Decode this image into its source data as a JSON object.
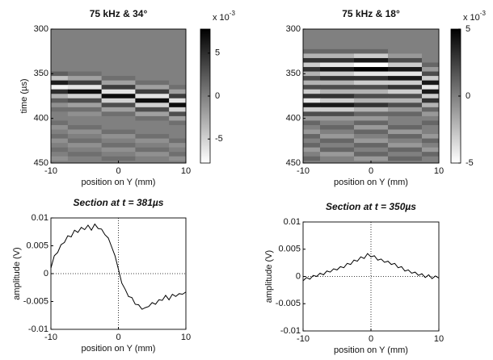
{
  "chart_data": [
    {
      "type": "heatmap",
      "title": "75 kHz & 34°",
      "xlabel": "position on Y (mm)",
      "ylabel": "time (µs)",
      "xlim": [
        -10,
        10
      ],
      "xticks": [
        -10,
        0,
        10
      ],
      "ylim": [
        300,
        450
      ],
      "yticks": [
        300,
        350,
        400,
        450
      ],
      "y_reversed": true,
      "clim": [
        -7.8,
        7.8
      ],
      "cticks": [
        -5,
        0,
        5
      ],
      "colorbar_multiplier": "x 10",
      "colorbar_exponent": "-3",
      "colormap": "gray",
      "x": [
        -10,
        -5,
        0,
        5,
        10
      ],
      "y": [
        300,
        305,
        310,
        315,
        320,
        325,
        330,
        335,
        340,
        345,
        350,
        355,
        360,
        365,
        370,
        375,
        380,
        385,
        390,
        395,
        400,
        405,
        410,
        415,
        420,
        425,
        430,
        435,
        440,
        445,
        450
      ],
      "z": [
        [
          0,
          0,
          0,
          0,
          0
        ],
        [
          0,
          0,
          0,
          0,
          0
        ],
        [
          0,
          0,
          0,
          0,
          0
        ],
        [
          0,
          0,
          0,
          0,
          0
        ],
        [
          0,
          0,
          0,
          0,
          0
        ],
        [
          0,
          0,
          0,
          0,
          0
        ],
        [
          0,
          0,
          0,
          0,
          0
        ],
        [
          0,
          0,
          0,
          0,
          0
        ],
        [
          0,
          0,
          0,
          0,
          0
        ],
        [
          0,
          0,
          0,
          0,
          0
        ],
        [
          2,
          1,
          0,
          0,
          0
        ],
        [
          -4,
          -2,
          1,
          0,
          0
        ],
        [
          6,
          4,
          -2,
          1,
          0
        ],
        [
          -7,
          -6,
          4,
          -2,
          1
        ],
        [
          5,
          7,
          -6,
          4,
          -2
        ],
        [
          -3,
          -5,
          7,
          -6,
          4
        ],
        [
          2,
          3,
          -5,
          7,
          -6
        ],
        [
          -1,
          -2,
          3,
          -5,
          7
        ],
        [
          1,
          1,
          -2,
          3,
          -5
        ],
        [
          0,
          -1,
          1,
          -2,
          3
        ],
        [
          0,
          0,
          0,
          1,
          -2
        ],
        [
          1,
          0,
          0,
          0,
          1
        ],
        [
          -1,
          1,
          0,
          0,
          0
        ],
        [
          0,
          -1,
          1,
          0,
          0
        ],
        [
          1,
          0,
          -1,
          1,
          0
        ],
        [
          -1,
          1,
          0,
          -1,
          1
        ],
        [
          0,
          -1,
          1,
          0,
          -1
        ],
        [
          1,
          0,
          -1,
          1,
          0
        ],
        [
          0,
          1,
          0,
          -1,
          1
        ],
        [
          -1,
          0,
          1,
          0,
          -1
        ],
        [
          0,
          0,
          0,
          0,
          0
        ]
      ]
    },
    {
      "type": "heatmap",
      "title": "75 kHz & 18°",
      "xlabel": "position on Y (mm)",
      "xlim": [
        -10,
        10
      ],
      "xticks": [
        -10,
        0,
        10
      ],
      "ylim": [
        300,
        450
      ],
      "yticks": [
        300,
        350,
        400,
        450
      ],
      "y_reversed": true,
      "clim": [
        -5,
        5
      ],
      "cticks": [
        -5,
        0,
        5
      ],
      "colorbar_multiplier": "x 10",
      "colorbar_exponent": "-3",
      "colormap": "gray",
      "x": [
        -10,
        -5,
        0,
        5,
        10
      ],
      "y": [
        300,
        305,
        310,
        315,
        320,
        325,
        330,
        335,
        340,
        345,
        350,
        355,
        360,
        365,
        370,
        375,
        380,
        385,
        390,
        395,
        400,
        405,
        410,
        415,
        420,
        425,
        430,
        435,
        440,
        445,
        450
      ],
      "z": [
        [
          0,
          0,
          0,
          0,
          0
        ],
        [
          0,
          0,
          0,
          0,
          0
        ],
        [
          0,
          0,
          0,
          0,
          0
        ],
        [
          0,
          0,
          0,
          0,
          0
        ],
        [
          0,
          0,
          0,
          0,
          0
        ],
        [
          1,
          1,
          1,
          0,
          0
        ],
        [
          -2,
          -2,
          -3,
          -1,
          0
        ],
        [
          3,
          3,
          4,
          2,
          0
        ],
        [
          -3,
          -4,
          -5,
          -3,
          1
        ],
        [
          3,
          4,
          5,
          4,
          -1
        ],
        [
          -2,
          -3,
          -4,
          -4,
          2
        ],
        [
          2,
          3,
          3,
          4,
          -3
        ],
        [
          -2,
          -2,
          -3,
          -3,
          4
        ],
        [
          2,
          2,
          2,
          3,
          -4
        ],
        [
          -3,
          -2,
          -2,
          -3,
          4
        ],
        [
          3,
          3,
          2,
          2,
          -3
        ],
        [
          -4,
          -3,
          -2,
          -2,
          3
        ],
        [
          4,
          4,
          3,
          2,
          -2
        ],
        [
          -3,
          -3,
          -2,
          -1,
          1
        ],
        [
          2,
          2,
          1,
          1,
          -1
        ],
        [
          -1,
          -1,
          -1,
          0,
          0
        ],
        [
          1,
          0,
          1,
          0,
          1
        ],
        [
          0,
          1,
          -1,
          1,
          0
        ],
        [
          -1,
          0,
          1,
          -1,
          0
        ],
        [
          1,
          -1,
          0,
          1,
          -1
        ],
        [
          0,
          1,
          -1,
          0,
          1
        ],
        [
          1,
          0,
          1,
          -1,
          0
        ],
        [
          -1,
          1,
          0,
          1,
          -1
        ],
        [
          0,
          -1,
          1,
          0,
          1
        ],
        [
          1,
          0,
          -1,
          1,
          0
        ],
        [
          0,
          0,
          0,
          0,
          0
        ]
      ]
    },
    {
      "type": "line",
      "title": "Section at t = 381µs",
      "xlabel": "position on Y (mm)",
      "ylabel": "amplitude (V)",
      "xlim": [
        -10,
        10
      ],
      "xticks": [
        -10,
        0,
        10
      ],
      "ylim": [
        -0.01,
        0.01
      ],
      "yticks": [
        0.01,
        0.005,
        0,
        -0.005,
        -0.01
      ],
      "color": "#000000",
      "x": [
        -10,
        -9.5,
        -9,
        -8.5,
        -8,
        -7.5,
        -7,
        -6.5,
        -6,
        -5.5,
        -5,
        -4.5,
        -4,
        -3.5,
        -3,
        -2.5,
        -2,
        -1.5,
        -1,
        -0.5,
        0,
        0.5,
        1,
        1.5,
        2,
        2.5,
        3,
        3.5,
        4,
        4.5,
        5,
        5.5,
        6,
        6.5,
        7,
        7.5,
        8,
        8.5,
        9,
        9.5,
        10
      ],
      "values": [
        0.001,
        0.0032,
        0.0038,
        0.0052,
        0.0056,
        0.0068,
        0.0066,
        0.0078,
        0.0074,
        0.0083,
        0.0079,
        0.0087,
        0.0078,
        0.0089,
        0.0081,
        0.008,
        0.007,
        0.0064,
        0.0048,
        0.0032,
        0.0008,
        -0.0017,
        -0.0028,
        -0.0041,
        -0.0043,
        -0.0055,
        -0.0056,
        -0.0064,
        -0.0061,
        -0.0059,
        -0.0052,
        -0.0055,
        -0.0047,
        -0.0048,
        -0.0039,
        -0.0047,
        -0.0037,
        -0.0041,
        -0.0036,
        -0.0037,
        -0.0033
      ]
    },
    {
      "type": "line",
      "title": "Section at t = 350µs",
      "xlabel": "position on Y (mm)",
      "ylabel": "amplitude (V)",
      "xlim": [
        -10,
        10
      ],
      "xticks": [
        -10,
        0,
        10
      ],
      "ylim": [
        -0.01,
        0.01
      ],
      "yticks": [
        0.01,
        0.005,
        0,
        -0.005,
        -0.01
      ],
      "color": "#000000",
      "x": [
        -10,
        -9.5,
        -9,
        -8.5,
        -8,
        -7.5,
        -7,
        -6.5,
        -6,
        -5.5,
        -5,
        -4.5,
        -4,
        -3.5,
        -3,
        -2.5,
        -2,
        -1.5,
        -1,
        -0.5,
        0,
        0.5,
        1,
        1.5,
        2,
        2.5,
        3,
        3.5,
        4,
        4.5,
        5,
        5.5,
        6,
        6.5,
        7,
        7.5,
        8,
        8.5,
        9,
        9.5,
        10
      ],
      "values": [
        -0.0008,
        -0.0002,
        -0.0005,
        0.0002,
        0,
        0.0006,
        0.0003,
        0.001,
        0.0008,
        0.0014,
        0.0012,
        0.0018,
        0.0016,
        0.0024,
        0.0022,
        0.003,
        0.0028,
        0.0036,
        0.0033,
        0.0042,
        0.0036,
        0.0038,
        0.003,
        0.0032,
        0.0026,
        0.0028,
        0.0022,
        0.0024,
        0.0016,
        0.0018,
        0.001,
        0.0012,
        0.0006,
        0.0008,
        0.0002,
        0.0005,
        -0.0002,
        0.0003,
        -0.0004,
        0.0001,
        -0.0003
      ]
    }
  ]
}
